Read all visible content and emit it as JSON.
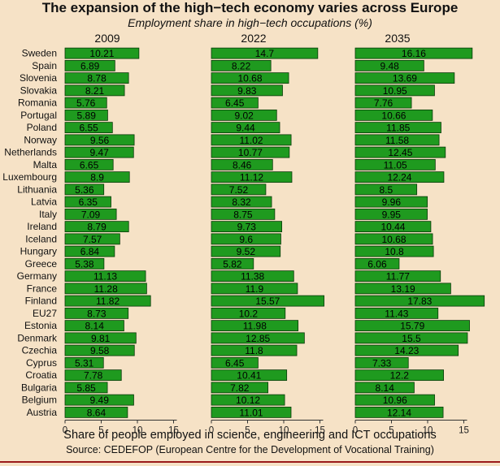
{
  "chart_data": {
    "type": "bar",
    "title": "The expansion of the high−tech economy varies across Europe",
    "subtitle": "Employment share in high−tech occupations (%)",
    "xlabel": "Share of people employed in science, engineering and ICT occupations",
    "source": "Source: CEDEFOP (European Centre for the Development of Vocational Training)",
    "orientation": "horizontal",
    "xlim": [
      0,
      18
    ],
    "xticks": [
      0,
      5,
      10,
      15
    ],
    "bar_color": "#1f9a1f",
    "bar_edge": "#0a3a0a",
    "categories": [
      "Sweden",
      "Spain",
      "Slovenia",
      "Slovakia",
      "Romania",
      "Portugal",
      "Poland",
      "Norway",
      "Netherlands",
      "Malta",
      "Luxembourg",
      "Lithuania",
      "Latvia",
      "Italy",
      "Ireland",
      "Iceland",
      "Hungary",
      "Greece",
      "Germany",
      "France",
      "Finland",
      "EU27",
      "Estonia",
      "Denmark",
      "Czechia",
      "Cyprus",
      "Croatia",
      "Bulgaria",
      "Belgium",
      "Austria"
    ],
    "series": [
      {
        "name": "2009",
        "values": [
          10.21,
          6.89,
          8.78,
          8.21,
          5.76,
          5.89,
          6.55,
          9.56,
          9.47,
          6.65,
          8.9,
          5.36,
          6.35,
          7.09,
          8.79,
          7.57,
          6.84,
          5.38,
          11.13,
          11.28,
          11.82,
          8.73,
          8.14,
          9.81,
          9.58,
          5.31,
          7.78,
          5.85,
          9.49,
          8.64
        ]
      },
      {
        "name": "2022",
        "values": [
          14.7,
          8.22,
          10.68,
          9.83,
          6.45,
          9.02,
          9.44,
          11.02,
          10.77,
          8.46,
          11.12,
          7.52,
          8.32,
          8.75,
          9.73,
          9.6,
          9.52,
          5.82,
          11.38,
          11.9,
          15.57,
          10.2,
          11.98,
          12.85,
          11.8,
          6.45,
          10.41,
          7.82,
          10.12,
          11.01
        ]
      },
      {
        "name": "2035",
        "values": [
          16.16,
          9.48,
          13.69,
          10.95,
          7.76,
          10.66,
          11.85,
          11.58,
          12.45,
          11.05,
          12.24,
          8.5,
          9.96,
          9.95,
          10.44,
          10.68,
          10.8,
          6.06,
          11.77,
          13.19,
          17.83,
          11.43,
          15.79,
          15.5,
          14.23,
          7.33,
          12.2,
          8.14,
          10.96,
          12.14
        ]
      }
    ]
  }
}
